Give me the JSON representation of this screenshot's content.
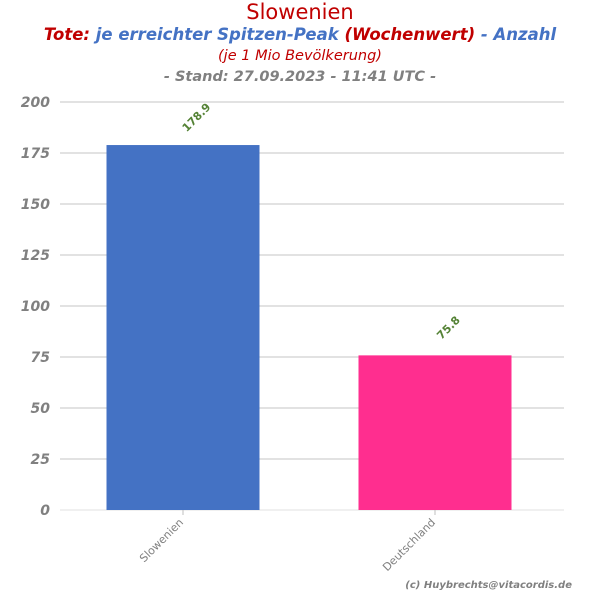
{
  "title": "Slowenien",
  "subtitle": {
    "part1": "Tote:",
    "part2": "je erreichter Spitzen-Peak",
    "part3": "(Wochenwert)",
    "part4": "- Anzahl"
  },
  "subtitle2": "(je 1 Mio Bevölkerung)",
  "subtitle3": "- Stand: 27.09.2023 - 11:41 UTC -",
  "credit": "(c) Huybrechts@vitacordis.de",
  "colors": {
    "slowenien": "#4472c4",
    "deutschland": "#ff2e8f",
    "value_label": "#548235",
    "axis_text": "#808080",
    "grid": "#d9d9d9"
  },
  "chart_data": {
    "type": "bar",
    "categories": [
      "Slowenien",
      "Deutschland"
    ],
    "values": [
      178.9,
      75.8
    ],
    "value_labels": [
      "178.9",
      "75.8"
    ],
    "ylim": [
      0,
      200
    ],
    "yticks": [
      0,
      25,
      50,
      75,
      100,
      125,
      150,
      175,
      200
    ],
    "grid": true,
    "xlabel": "",
    "ylabel": ""
  }
}
